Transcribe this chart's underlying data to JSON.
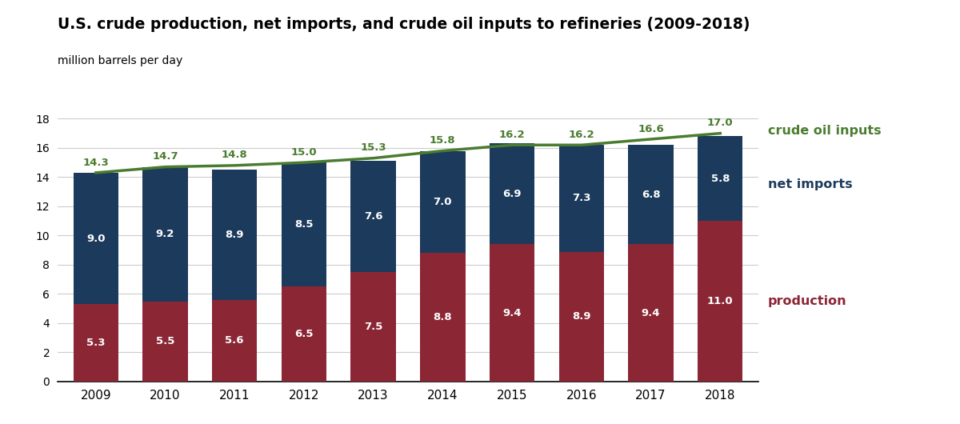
{
  "title": "U.S. crude production, net imports, and crude oil inputs to refineries (2009-2018)",
  "ylabel": "million barrels per day",
  "years": [
    2009,
    2010,
    2011,
    2012,
    2013,
    2014,
    2015,
    2016,
    2017,
    2018
  ],
  "production": [
    5.3,
    5.5,
    5.6,
    6.5,
    7.5,
    8.8,
    9.4,
    8.9,
    9.4,
    11.0
  ],
  "net_imports": [
    9.0,
    9.2,
    8.9,
    8.5,
    7.6,
    7.0,
    6.9,
    7.3,
    6.8,
    5.8
  ],
  "crude_oil_inputs": [
    14.3,
    14.7,
    14.8,
    15.0,
    15.3,
    15.8,
    16.2,
    16.2,
    16.6,
    17.0
  ],
  "production_color": "#8B2635",
  "net_imports_color": "#1C3A5C",
  "crude_line_color": "#4A7C2F",
  "bar_width": 0.65,
  "ylim": [
    0,
    18
  ],
  "yticks": [
    0,
    2,
    4,
    6,
    8,
    10,
    12,
    14,
    16,
    18
  ],
  "bg_color": "#ffffff",
  "grid_color": "#cccccc",
  "title_fontsize": 13.5,
  "annotation_label_net": "net imports",
  "annotation_label_prod": "production",
  "annotation_label_crude": "crude oil inputs",
  "annotation_color_net": "#1C3A5C",
  "annotation_color_prod": "#8B2635",
  "annotation_color_crude": "#4A7C2F"
}
